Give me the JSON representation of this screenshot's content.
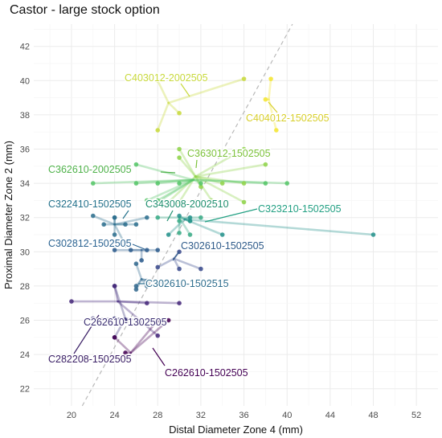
{
  "chart_data": {
    "type": "scatter",
    "title": "Castor - large stock option",
    "xlabel": "Distal Diameter Zone 4 (mm)",
    "ylabel": "Proximal Diameter Zone 2 (mm)",
    "xlim": [
      16.5,
      54
    ],
    "ylim": [
      21,
      43.3
    ],
    "xticks": [
      20,
      24,
      28,
      32,
      36,
      40,
      44,
      48,
      52
    ],
    "yticks": [
      22,
      24,
      26,
      28,
      30,
      32,
      34,
      36,
      38,
      40,
      42
    ],
    "grid": true,
    "reference_line": {
      "style": "dashed",
      "points": [
        [
          21,
          21
        ],
        [
          40.5,
          43.3
        ]
      ]
    },
    "series": [
      {
        "name": "C403012-2002505",
        "color": "#c8d93c",
        "center": [
          29,
          38.7
        ],
        "points": [
          [
            36,
            40.1
          ],
          [
            30,
            38.1
          ],
          [
            28,
            37.1
          ],
          [
            28,
            40
          ]
        ]
      },
      {
        "name": "C404012-1502505",
        "color": "#f3e531",
        "center": [
          38.3,
          38.9
        ],
        "points": [
          [
            38.5,
            40.1
          ],
          [
            39,
            37.1
          ],
          [
            38,
            38.9
          ]
        ]
      },
      {
        "name": "C363012-1502505",
        "color": "#8fd44a",
        "center": [
          31.5,
          34.4
        ],
        "points": [
          [
            30,
            36
          ],
          [
            36,
            36
          ],
          [
            38,
            35.1
          ],
          [
            36,
            34
          ],
          [
            33,
            33
          ],
          [
            30,
            32.9
          ],
          [
            36,
            32.9
          ],
          [
            29,
            32.9
          ],
          [
            32,
            33.8
          ],
          [
            30,
            35.5
          ],
          [
            34,
            34
          ]
        ]
      },
      {
        "name": "C362610-2002505",
        "color": "#55c667",
        "center": [
          31.3,
          34.2
        ],
        "points": [
          [
            22,
            34
          ],
          [
            26,
            35.1
          ],
          [
            26,
            34
          ],
          [
            28,
            34
          ],
          [
            27,
            33
          ],
          [
            28,
            33
          ],
          [
            28,
            32.9
          ],
          [
            38,
            34
          ],
          [
            40,
            34
          ],
          [
            30,
            34
          ],
          [
            32,
            34
          ]
        ]
      },
      {
        "name": "C343008-2002510",
        "color": "#3aaa86",
        "center": [
          30,
          32
        ],
        "points": [
          [
            28,
            32
          ],
          [
            30,
            31.8
          ],
          [
            31,
            31.8
          ],
          [
            30,
            31.1
          ],
          [
            31,
            31
          ],
          [
            32,
            32
          ]
        ]
      },
      {
        "name": "C323210-1502505",
        "color": "#26928c",
        "center": [
          30.5,
          31.9
        ],
        "points": [
          [
            29,
            31
          ],
          [
            31,
            31.8
          ],
          [
            34,
            31
          ],
          [
            48,
            31
          ],
          [
            30,
            32.1
          ],
          [
            31,
            32
          ]
        ]
      },
      {
        "name": "C322410-1502505",
        "color": "#2d6f8e",
        "center": [
          24,
          31.6
        ],
        "points": [
          [
            22,
            32.1
          ],
          [
            24,
            32
          ],
          [
            25,
            31.6
          ],
          [
            23,
            31.6
          ],
          [
            24,
            31
          ],
          [
            25,
            30.4
          ],
          [
            24,
            32
          ],
          [
            27,
            32
          ],
          [
            26,
            31.6
          ]
        ]
      },
      {
        "name": "C302812-1502505",
        "color": "#2c5b8c",
        "center": [
          26.5,
          30.1
        ],
        "points": [
          [
            24,
            30.1
          ],
          [
            25.5,
            30.1
          ],
          [
            27,
            30.1
          ],
          [
            28,
            30.1
          ],
          [
            26.5,
            29.5
          ]
        ]
      },
      {
        "name": "C302610-1502505",
        "color": "#3a4a8c",
        "center": [
          29.5,
          29.6
        ],
        "points": [
          [
            30,
            30
          ],
          [
            32,
            29
          ],
          [
            30,
            29
          ],
          [
            28,
            29.1
          ]
        ]
      },
      {
        "name": "C302610-1502515",
        "color": "#32698e",
        "center": [
          26.5,
          28.4
        ],
        "points": [
          [
            26,
            28
          ],
          [
            27,
            28
          ],
          [
            26,
            27.8
          ],
          [
            30,
            28
          ],
          [
            26,
            29.3
          ],
          [
            27,
            28.3
          ]
        ]
      },
      {
        "name": "C262610-1302505",
        "color": "#3f3a7c",
        "center": [
          25,
          26.1
        ],
        "points": [
          [
            24,
            28
          ],
          [
            26,
            26
          ],
          [
            24,
            26.1
          ],
          [
            22,
            26.1
          ],
          [
            24,
            25
          ],
          [
            25,
            26
          ]
        ]
      },
      {
        "name": "C282208-1502505",
        "color": "#45287a",
        "center": [
          24.3,
          27.1
        ],
        "points": [
          [
            20,
            27.1
          ],
          [
            24,
            28
          ],
          [
            27,
            27
          ],
          [
            30,
            27
          ],
          [
            28,
            25.1
          ]
        ]
      },
      {
        "name": "C262610-1502505",
        "color": "#440154",
        "center": [
          25.5,
          24.1
        ],
        "points": [
          [
            25,
            24.1
          ],
          [
            29,
            26
          ],
          [
            24,
            25
          ],
          [
            28,
            26
          ]
        ]
      }
    ],
    "labels": [
      {
        "text": "C403012-2002505",
        "color": "#c8d93c"
      },
      {
        "text": "C404012-1502505",
        "color": "#d8cf2c"
      },
      {
        "text": "C363012-1502505",
        "color": "#7cc23a"
      },
      {
        "text": "C362610-2002505",
        "color": "#4fb24a"
      },
      {
        "text": "C343008-2002510",
        "color": "#1e8e6e"
      },
      {
        "text": "C322410-1502505",
        "color": "#25728c"
      },
      {
        "text": "C323210-1502505",
        "color": "#23a083"
      },
      {
        "text": "C302812-1502505",
        "color": "#2c6492"
      },
      {
        "text": "C302610-1502505",
        "color": "#2f5b8a"
      },
      {
        "text": "C302610-1502515",
        "color": "#2f6e8e"
      },
      {
        "text": "C262610-1302505",
        "color": "#3b2f72"
      },
      {
        "text": "C282208-1502505",
        "color": "#3b2066"
      },
      {
        "text": "C262610-1502505",
        "color": "#440154"
      }
    ]
  }
}
